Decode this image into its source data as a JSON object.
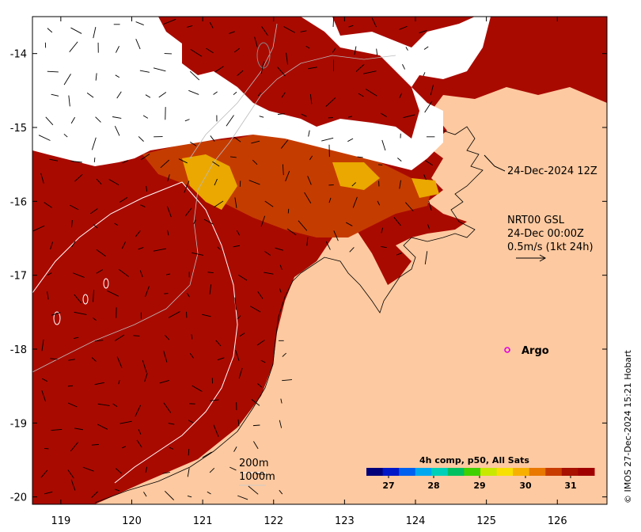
{
  "map": {
    "lon_range": [
      118.6,
      126.7
    ],
    "lat_range": [
      -20.1,
      -13.5
    ],
    "x_ticks": [
      119,
      120,
      121,
      122,
      123,
      124,
      125,
      126
    ],
    "y_ticks": [
      -14,
      -15,
      -16,
      -17,
      -18,
      -19,
      -20
    ],
    "land_color": "#fdc9a0",
    "cloud_color": "#ffffff"
  },
  "annotations": {
    "track_time": "24-Dec-2024 12Z",
    "gsl_line1": "NRT00 GSL",
    "gsl_line2": "24-Dec 00:00Z",
    "gsl_line3": "0.5m/s (1kt 24h)",
    "argo_label": "Argo",
    "depth_200": "200m",
    "depth_1000": "1000m",
    "credit": "© IMOS 27-Dec-2024 15:21 Hobart"
  },
  "colorbar": {
    "title": "4h comp, p50, All Sats",
    "ticks": [
      "27",
      "28",
      "29",
      "30",
      "31"
    ],
    "colors": [
      "#00007a",
      "#0018c8",
      "#0060f0",
      "#00a8f0",
      "#00d0b8",
      "#00c060",
      "#40d000",
      "#c8e800",
      "#f8e000",
      "#f8b000",
      "#e87800",
      "#c83c00",
      "#a81000",
      "#a00000"
    ]
  },
  "sst_colors": {
    "warm_dark": "#a90a00",
    "warm_mid": "#c53c00",
    "warm_orange": "#dc6a00",
    "warm_yellow": "#eaa800",
    "cool_green": "#8cd800"
  }
}
